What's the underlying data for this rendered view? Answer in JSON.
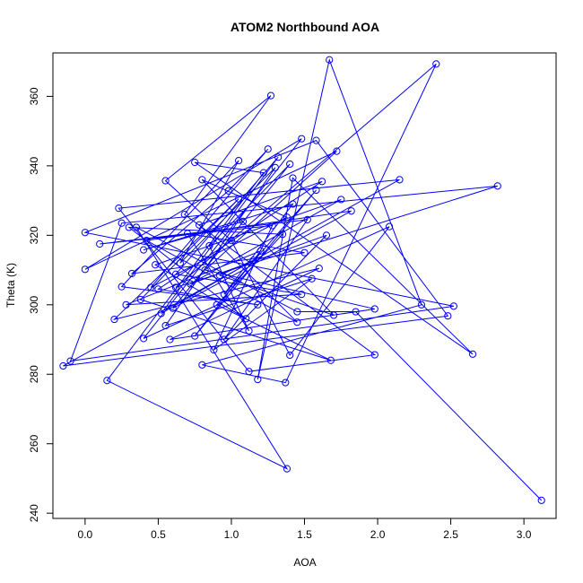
{
  "chart_data": {
    "type": "line",
    "title": "ATOM2 Northbound AOA",
    "xlabel": "AOA",
    "ylabel": "Theta (K)",
    "xlim": [
      -0.22,
      3.22
    ],
    "ylim": [
      238.5,
      372.5
    ],
    "xticks": [
      0.0,
      0.5,
      1.0,
      1.5,
      2.0,
      2.5,
      3.0
    ],
    "xtick_labels": [
      "0.0",
      "0.5",
      "1.0",
      "1.5",
      "2.0",
      "2.5",
      "3.0"
    ],
    "yticks": [
      240,
      260,
      280,
      300,
      320,
      340,
      360
    ],
    "ytick_labels": [
      "240",
      "260",
      "280",
      "300",
      "320",
      "340",
      "360"
    ],
    "grid": false,
    "series": [
      {
        "color": "#0000ff",
        "marker": "open-circle",
        "line": true,
        "points": [
          [
            3.12,
            243.7
          ],
          [
            1.85,
            298.0
          ],
          [
            1.45,
            298.0
          ],
          [
            0.35,
            322.3
          ],
          [
            1.38,
            252.8
          ],
          [
            0.15,
            278.2
          ],
          [
            1.22,
            338.0
          ],
          [
            0.75,
            341.0
          ],
          [
            2.65,
            285.8
          ],
          [
            1.42,
            336.5
          ],
          [
            1.18,
            278.5
          ],
          [
            1.67,
            370.5
          ],
          [
            2.3,
            300.0
          ],
          [
            0.8,
            282.7
          ],
          [
            1.37,
            277.6
          ],
          [
            2.4,
            369.3
          ],
          [
            0.62,
            305.0
          ],
          [
            2.82,
            334.2
          ],
          [
            0.25,
            323.5
          ],
          [
            -0.1,
            283.8
          ],
          [
            2.52,
            299.6
          ],
          [
            0.0,
            320.8
          ],
          [
            1.58,
            347.3
          ],
          [
            2.48,
            296.8
          ],
          [
            -0.15,
            282.4
          ],
          [
            2.15,
            336.0
          ],
          [
            0.23,
            327.8
          ],
          [
            1.12,
            280.8
          ],
          [
            1.98,
            285.6
          ],
          [
            0.68,
            326.0
          ],
          [
            1.27,
            360.2
          ],
          [
            0.55,
            335.7
          ],
          [
            1.0,
            318.5
          ],
          [
            1.4,
            285.5
          ],
          [
            2.08,
            322.5
          ],
          [
            0.4,
            290.3
          ],
          [
            1.48,
            347.8
          ],
          [
            0.0,
            310.2
          ],
          [
            1.72,
            344.2
          ],
          [
            0.82,
            310.0
          ],
          [
            1.98,
            298.8
          ],
          [
            0.58,
            290.0
          ],
          [
            1.6,
            310.5
          ],
          [
            0.2,
            295.8
          ],
          [
            1.05,
            330.5
          ],
          [
            0.38,
            301.5
          ],
          [
            1.68,
            284.0
          ],
          [
            0.9,
            300.0
          ],
          [
            1.35,
            320.3
          ],
          [
            0.3,
            322.3
          ],
          [
            1.1,
            296.0
          ],
          [
            0.48,
            311.5
          ],
          [
            1.75,
            330.3
          ],
          [
            0.72,
            306.0
          ],
          [
            1.65,
            320.0
          ],
          [
            0.95,
            290.0
          ],
          [
            1.52,
            324.5
          ],
          [
            0.1,
            317.5
          ],
          [
            1.28,
            322.8
          ],
          [
            0.88,
            287.0
          ],
          [
            1.55,
            307.5
          ],
          [
            0.55,
            294.0
          ],
          [
            1.3,
            339.5
          ],
          [
            0.65,
            312.0
          ],
          [
            1.05,
            341.5
          ],
          [
            0.25,
            305.2
          ],
          [
            1.18,
            300.0
          ],
          [
            0.5,
            304.5
          ],
          [
            1.62,
            335.5
          ],
          [
            0.78,
            323.0
          ],
          [
            1.45,
            295.0
          ],
          [
            0.42,
            318.5
          ],
          [
            1.82,
            327.0
          ],
          [
            0.6,
            299.0
          ],
          [
            1.4,
            340.5
          ],
          [
            0.85,
            317.0
          ],
          [
            1.12,
            292.5
          ],
          [
            0.7,
            320.5
          ],
          [
            1.5,
            315.0
          ],
          [
            0.32,
            309.0
          ],
          [
            0.98,
            332.8
          ],
          [
            1.25,
            344.8
          ],
          [
            0.45,
            305.0
          ],
          [
            1.38,
            325.2
          ],
          [
            0.8,
            336.0
          ],
          [
            1.7,
            297.0
          ],
          [
            0.92,
            308.5
          ],
          [
            1.15,
            312.8
          ],
          [
            0.52,
            297.5
          ],
          [
            1.32,
            342.5
          ],
          [
            0.62,
            308.8
          ],
          [
            1.48,
            303.0
          ],
          [
            0.28,
            300.0
          ],
          [
            1.2,
            315.5
          ],
          [
            0.75,
            291.0
          ],
          [
            1.58,
            333.0
          ],
          [
            0.95,
            303.0
          ],
          [
            1.42,
            329.0
          ],
          [
            0.4,
            315.8
          ],
          [
            1.08,
            324.0
          ]
        ]
      }
    ]
  }
}
